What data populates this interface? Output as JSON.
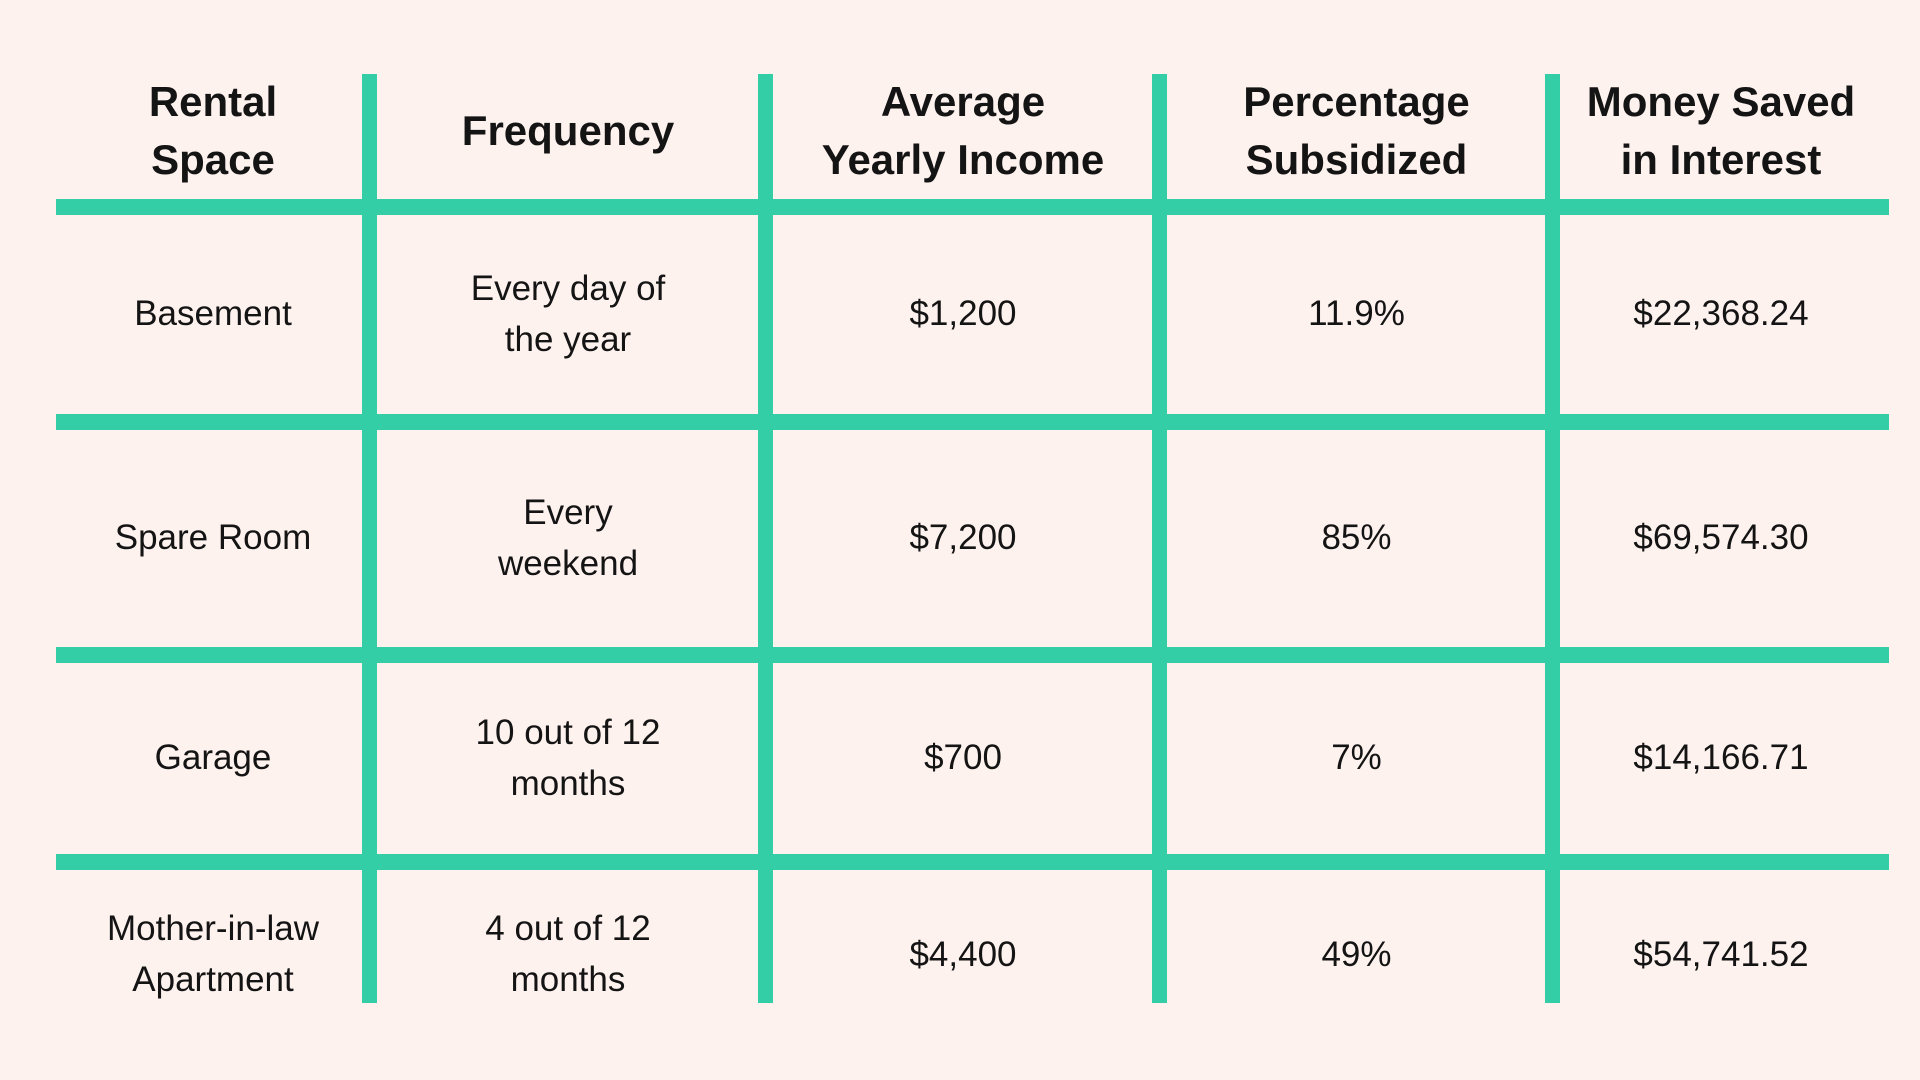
{
  "page": {
    "background_color": "#FDF2EE",
    "grid_line_color": "#33CEA6",
    "text_color": "#141414"
  },
  "table": {
    "header": [
      "Rental\nSpace",
      "Frequency",
      "Average\nYearly Income",
      "Percentage\nSubsidized",
      "Money Saved\nin Interest"
    ],
    "rows": [
      [
        "Basement",
        "Every day of\nthe year",
        "$1,200",
        "11.9%",
        "$22,368.24"
      ],
      [
        "Spare Room",
        "Every\nweekend",
        "$7,200",
        "85%",
        "$69,574.30"
      ],
      [
        "Garage",
        "10 out of 12\nmonths",
        "$700",
        "7%",
        "$14,166.71"
      ],
      [
        "Mother-in-law\nApartment",
        "4 out of 12\nmonths",
        "$4,400",
        "49%",
        "$54,741.52"
      ]
    ]
  },
  "chart_data": {
    "type": "table",
    "title": "",
    "columns": [
      "Rental Space",
      "Frequency",
      "Average Yearly Income",
      "Percentage Subsidized",
      "Money Saved in Interest"
    ],
    "rows": [
      [
        "Basement",
        "Every day of the year",
        "$1,200",
        "11.9%",
        "$22,368.24"
      ],
      [
        "Spare Room",
        "Every weekend",
        "$7,200",
        "85%",
        "$69,574.30"
      ],
      [
        "Garage",
        "10 out of 12 months",
        "$700",
        "7%",
        "$14,166.71"
      ],
      [
        "Mother-in-law Apartment",
        "4 out of 12 months",
        "$4,400",
        "49%",
        "$54,741.52"
      ]
    ],
    "layout_hints": {
      "outer_border": false,
      "separator_color": "#33CEA6",
      "header_bold": true
    }
  }
}
